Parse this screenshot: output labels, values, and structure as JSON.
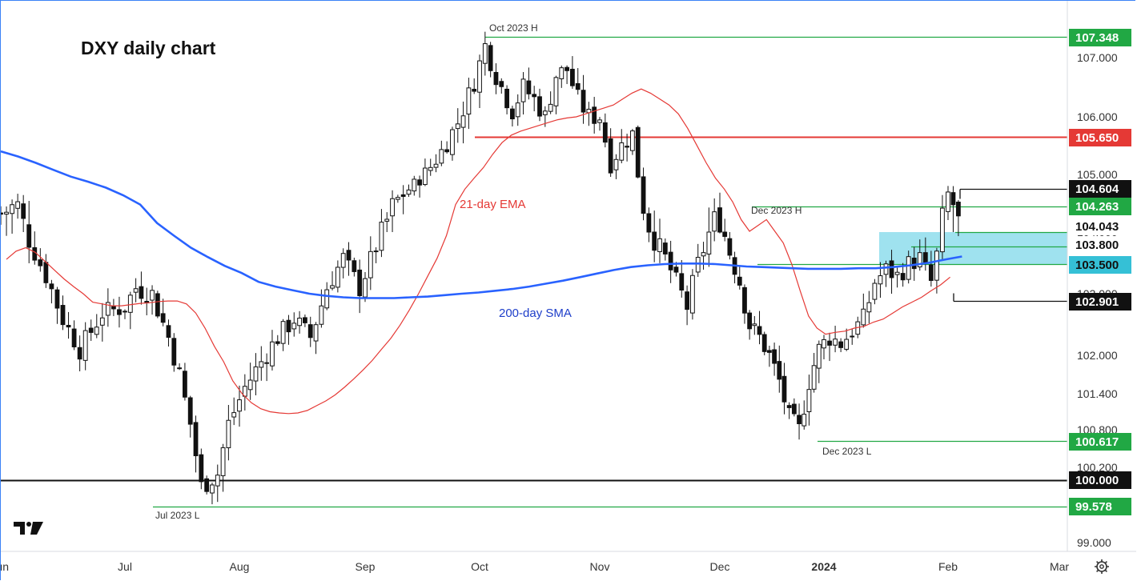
{
  "chart_data": {
    "type": "candlestick",
    "title": "DXY daily chart",
    "y_axis": {
      "ticks": [
        "107.000",
        "106.000",
        "105.000",
        "104.000",
        "103.000",
        "102.000",
        "101.400",
        "100.800",
        "100.200",
        "99.000"
      ],
      "range": [
        98.9,
        107.9
      ]
    },
    "x_axis": {
      "ticks": [
        "Jun",
        "Jul",
        "Aug",
        "Sep",
        "Oct",
        "Nov",
        "Dec",
        "2024",
        "Feb",
        "Mar"
      ],
      "bold_tick": "2024"
    },
    "price_labels": [
      {
        "text": "107.348",
        "value": 107.348,
        "color": "#21a844"
      },
      {
        "text": "105.650",
        "value": 105.65,
        "color": "#e53935"
      },
      {
        "text": "104.604",
        "value": 104.604,
        "color": "#111111"
      },
      {
        "text": "104.263",
        "value": 104.263,
        "color": "#21a844"
      },
      {
        "text": "104.043",
        "value": 104.043,
        "color": "#ffffff"
      },
      {
        "text": "103.800",
        "value": 103.8,
        "color": "#ffffff"
      },
      {
        "text": "103.500",
        "value": 103.5,
        "color": "#35c0d6"
      },
      {
        "text": "102.901",
        "value": 102.901,
        "color": "#111111"
      },
      {
        "text": "100.617",
        "value": 100.617,
        "color": "#21a844"
      },
      {
        "text": "100.000",
        "value": 100.0,
        "color": "#111111"
      },
      {
        "text": "99.578",
        "value": 99.578,
        "color": "#21a844"
      }
    ],
    "annotations": [
      "Oct 2023 H",
      "Dec 2023 H",
      "Dec 2023 L",
      "Jul 2023 L",
      "21-day EMA",
      "200-day SMA"
    ],
    "series": [
      {
        "name": "21-day EMA",
        "color": "#e53935"
      },
      {
        "name": "200-day SMA",
        "color": "#2962ff"
      }
    ],
    "levels": [
      {
        "value": 107.348,
        "color": "#21a844"
      },
      {
        "value": 105.65,
        "color": "#e53935"
      },
      {
        "value": 104.604,
        "color": "#111111"
      },
      {
        "value": 104.263,
        "color": "#21a844"
      },
      {
        "value": 104.043,
        "color": "#21a844"
      },
      {
        "value": 103.8,
        "color": "#21a844"
      },
      {
        "value": 103.5,
        "color": "#21a844"
      },
      {
        "value": 102.901,
        "color": "#111111"
      },
      {
        "value": 100.617,
        "color": "#21a844"
      },
      {
        "value": 100.0,
        "color": "#111111"
      },
      {
        "value": 99.578,
        "color": "#21a844"
      }
    ],
    "zone": {
      "from": 103.5,
      "to": 104.043,
      "color": "#7fd8ea"
    },
    "ema_21": [
      103.58,
      103.72,
      103.78,
      103.7,
      103.55,
      103.4,
      103.25,
      103.12,
      103.0,
      102.88,
      102.85,
      102.82,
      102.82,
      102.84,
      102.86,
      102.87,
      102.89,
      102.9,
      102.9,
      102.85,
      102.7,
      102.45,
      102.15,
      101.9,
      101.6,
      101.4,
      101.25,
      101.15,
      101.1,
      101.08,
      101.07,
      101.08,
      101.12,
      101.2,
      101.28,
      101.38,
      101.5,
      101.63,
      101.77,
      101.92,
      102.1,
      102.28,
      102.5,
      102.75,
      103.0,
      103.3,
      103.6,
      103.95,
      104.3,
      104.6,
      104.9,
      105.12,
      105.35,
      105.55,
      105.68,
      105.75,
      105.8,
      105.85,
      105.9,
      105.95,
      105.98,
      106.0,
      106.05,
      106.1,
      106.15,
      106.2,
      106.3,
      106.4,
      106.47,
      106.4,
      106.3,
      106.2,
      106.05,
      105.8,
      105.5,
      105.2,
      104.9,
      104.6,
      104.35,
      104.15,
      104.05,
      104.1,
      104.15,
      104.05,
      103.85,
      103.5,
      103.05,
      102.65,
      102.45,
      102.35,
      102.38,
      102.4,
      102.45,
      102.48,
      102.55,
      102.6,
      102.7,
      102.8,
      102.88,
      102.95,
      103.05,
      103.15,
      103.28
    ],
    "sma_200": [
      105.4,
      105.31,
      105.2,
      105.08,
      104.94,
      104.8,
      104.64,
      104.48,
      104.3,
      104.12,
      103.95,
      103.78,
      103.62,
      103.47,
      103.35,
      103.2,
      103.12,
      103.06,
      103.0,
      102.97,
      102.95,
      102.94,
      102.94,
      102.94,
      102.95,
      102.96,
      102.98,
      103.0,
      103.02,
      103.05,
      103.08,
      103.12,
      103.17,
      103.22,
      103.28,
      103.34,
      103.4,
      103.45,
      103.48,
      103.5,
      103.51,
      103.51,
      103.5,
      103.48,
      103.46,
      103.45,
      103.44,
      103.43,
      103.42,
      103.42,
      103.42,
      103.43,
      103.43,
      103.45,
      103.48,
      103.52,
      103.58,
      103.63
    ]
  }
}
